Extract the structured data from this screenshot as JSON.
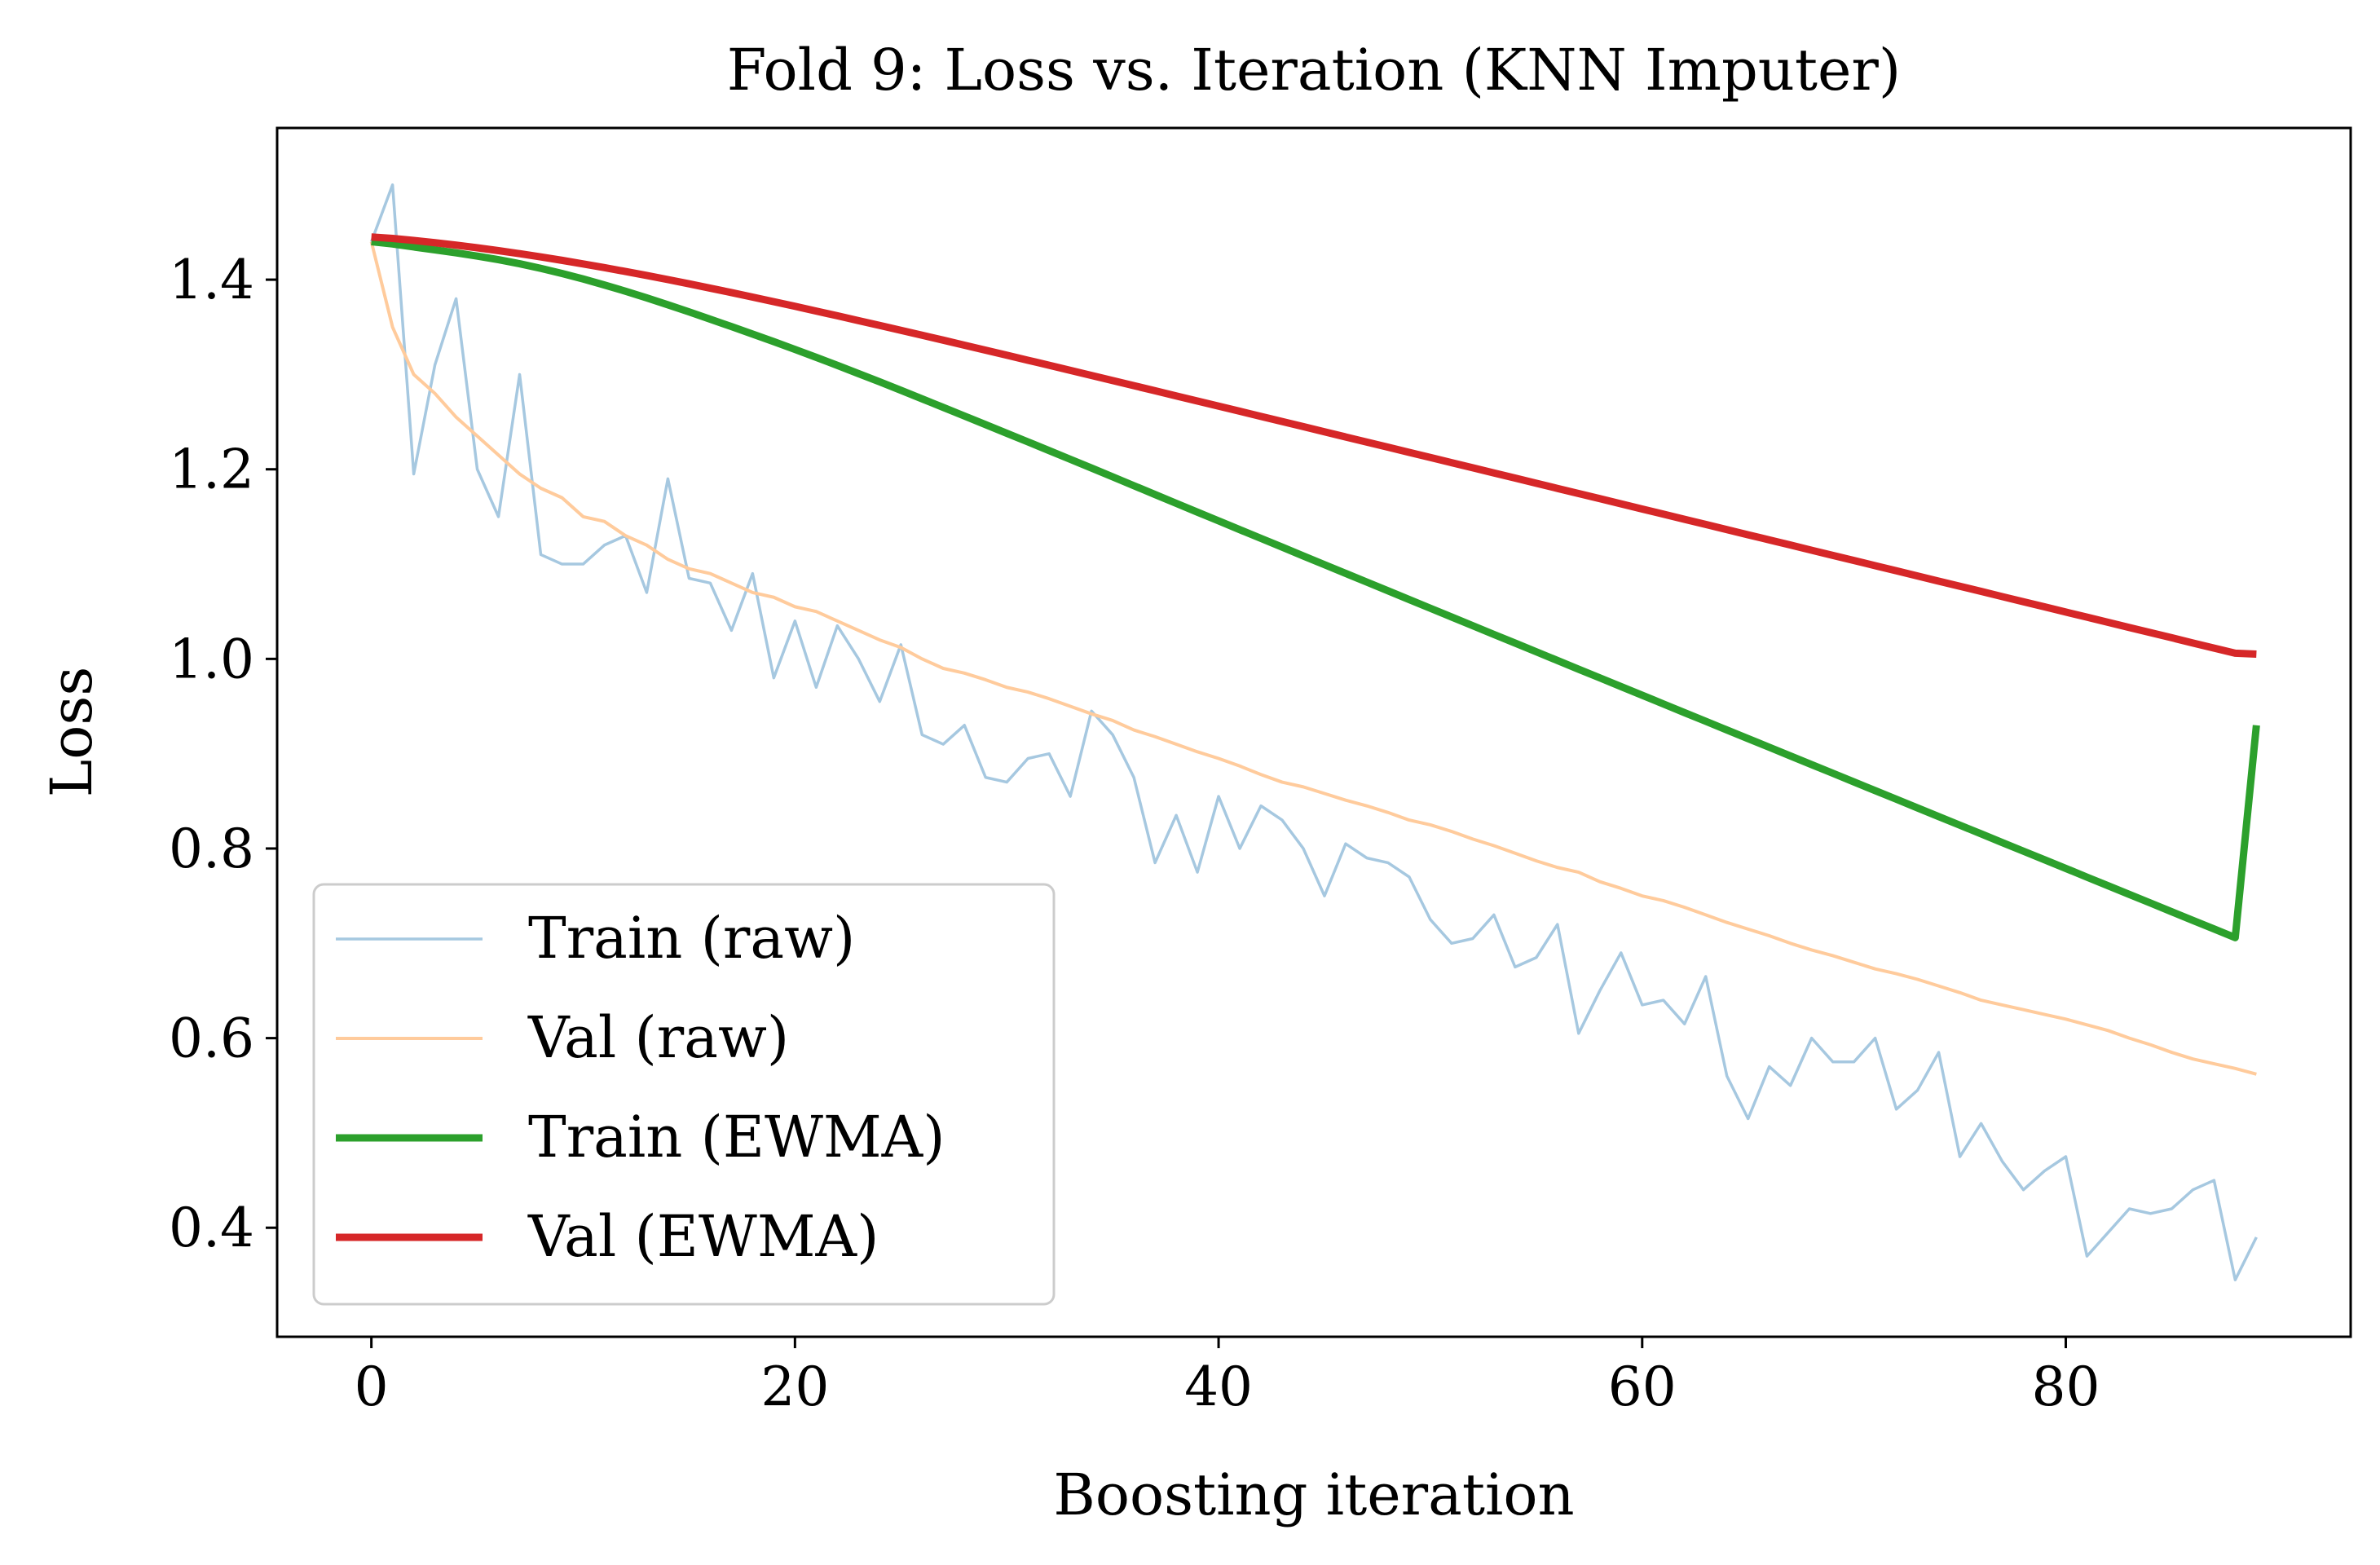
{
  "chart_data": {
    "type": "line",
    "title": "Fold 9: Loss vs. Iteration (KNN Imputer)",
    "xlabel": "Boosting iteration",
    "ylabel": "Loss",
    "xlim": [
      -4.45,
      93.45
    ],
    "ylim": [
      0.285,
      1.56
    ],
    "xticks": [
      0,
      20,
      40,
      60,
      80
    ],
    "xtick_labels": [
      "0",
      "20",
      "40",
      "60",
      "80"
    ],
    "yticks": [
      0.4,
      0.6,
      0.8,
      1.0,
      1.2,
      1.4
    ],
    "ytick_labels": [
      "0.4",
      "0.6",
      "0.8",
      "1.0",
      "1.2",
      "1.4"
    ],
    "grid": false,
    "legend_position": "lower-left",
    "series": [
      {
        "name": "Train (raw)",
        "color": "#a6c8e0",
        "values": [
          1.44,
          1.5,
          1.195,
          1.31,
          1.38,
          1.2,
          1.15,
          1.3,
          1.11,
          1.1,
          1.1,
          1.12,
          1.13,
          1.07,
          1.19,
          1.085,
          1.08,
          1.03,
          1.09,
          0.98,
          1.04,
          0.97,
          1.035,
          1.0,
          0.955,
          1.015,
          0.92,
          0.91,
          0.93,
          0.875,
          0.87,
          0.895,
          0.9,
          0.855,
          0.945,
          0.92,
          0.875,
          0.785,
          0.835,
          0.775,
          0.855,
          0.8,
          0.845,
          0.83,
          0.8,
          0.75,
          0.805,
          0.79,
          0.785,
          0.77,
          0.725,
          0.7,
          0.705,
          0.73,
          0.675,
          0.685,
          0.72,
          0.605,
          0.65,
          0.69,
          0.635,
          0.64,
          0.615,
          0.665,
          0.56,
          0.515,
          0.57,
          0.55,
          0.6,
          0.575,
          0.575,
          0.6,
          0.525,
          0.545,
          0.585,
          0.475,
          0.51,
          0.47,
          0.44,
          0.46,
          0.475,
          0.37,
          0.395,
          0.42,
          0.415,
          0.42,
          0.44,
          0.45,
          0.345,
          0.39
        ]
      },
      {
        "name": "Val (raw)",
        "color": "#ffcb9c",
        "values": [
          1.44,
          1.35,
          1.3,
          1.28,
          1.255,
          1.235,
          1.215,
          1.195,
          1.18,
          1.17,
          1.15,
          1.145,
          1.13,
          1.12,
          1.105,
          1.095,
          1.09,
          1.08,
          1.07,
          1.065,
          1.055,
          1.05,
          1.04,
          1.03,
          1.02,
          1.012,
          1.0,
          0.99,
          0.985,
          0.978,
          0.97,
          0.965,
          0.958,
          0.95,
          0.942,
          0.935,
          0.925,
          0.918,
          0.91,
          0.902,
          0.895,
          0.887,
          0.878,
          0.87,
          0.865,
          0.858,
          0.851,
          0.845,
          0.838,
          0.83,
          0.825,
          0.818,
          0.81,
          0.803,
          0.795,
          0.787,
          0.78,
          0.775,
          0.765,
          0.758,
          0.75,
          0.745,
          0.738,
          0.73,
          0.722,
          0.715,
          0.708,
          0.7,
          0.693,
          0.687,
          0.68,
          0.673,
          0.668,
          0.662,
          0.655,
          0.648,
          0.64,
          0.635,
          0.63,
          0.625,
          0.62,
          0.614,
          0.608,
          0.6,
          0.593,
          0.585,
          0.578,
          0.573,
          0.568,
          0.562
        ]
      },
      {
        "name": "Train (EWMA)",
        "color": "#2ca02c",
        "values": [
          1.44,
          1.4377,
          1.4345,
          1.4314,
          1.4283,
          1.4249,
          1.4211,
          1.4168,
          1.4119,
          1.4065,
          1.4007,
          1.3944,
          1.3878,
          1.3808,
          1.3735,
          1.366,
          1.3583,
          1.3505,
          1.3426,
          1.3346,
          1.3264,
          1.3181,
          1.3096,
          1.3009,
          1.2922,
          1.2833,
          1.2743,
          1.2653,
          1.2562,
          1.2471,
          1.238,
          1.2289,
          1.2197,
          1.2105,
          1.2013,
          1.192,
          1.1827,
          1.1734,
          1.1641,
          1.1548,
          1.1456,
          1.1363,
          1.1271,
          1.1179,
          1.1086,
          1.0994,
          1.0902,
          1.081,
          1.0718,
          1.0626,
          1.0534,
          1.0442,
          1.035,
          1.0258,
          1.0167,
          1.0075,
          0.9983,
          0.9891,
          0.98,
          0.9708,
          0.9617,
          0.9525,
          0.9433,
          0.9342,
          0.925,
          0.9159,
          0.9068,
          0.8976,
          0.8885,
          0.8794,
          0.8702,
          0.8611,
          0.852,
          0.8428,
          0.8337,
          0.8246,
          0.8155,
          0.8063,
          0.7972,
          0.7881,
          0.779,
          0.7698,
          0.7607,
          0.7516,
          0.7425,
          0.7333,
          0.7242,
          0.7151,
          0.706,
          0.93
        ]
      },
      {
        "name": "Val (EWMA)",
        "color": "#d62728",
        "values": [
          1.445,
          1.4435,
          1.4414,
          1.439,
          1.4364,
          1.4336,
          1.4306,
          1.4274,
          1.424,
          1.4204,
          1.4166,
          1.4127,
          1.4086,
          1.4044,
          1.4001,
          1.3956,
          1.391,
          1.3864,
          1.3816,
          1.3768,
          1.3719,
          1.3669,
          1.3619,
          1.3568,
          1.3517,
          1.3466,
          1.3414,
          1.3362,
          1.3309,
          1.3256,
          1.3203,
          1.315,
          1.3097,
          1.3043,
          1.299,
          1.2936,
          1.2882,
          1.2828,
          1.2774,
          1.272,
          1.2666,
          1.2612,
          1.2558,
          1.2504,
          1.245,
          1.2395,
          1.2341,
          1.2287,
          1.2233,
          1.2178,
          1.2124,
          1.207,
          1.2016,
          1.1961,
          1.1907,
          1.1853,
          1.1798,
          1.1744,
          1.169,
          1.1635,
          1.1581,
          1.1527,
          1.1472,
          1.1418,
          1.1364,
          1.1309,
          1.1255,
          1.1201,
          1.1146,
          1.1092,
          1.1038,
          1.0983,
          1.0929,
          1.0875,
          1.082,
          1.0766,
          1.0712,
          1.0657,
          1.0603,
          1.0549,
          1.0494,
          1.044,
          1.0386,
          1.0331,
          1.0277,
          1.0223,
          1.0168,
          1.0114,
          1.006,
          1.005
        ]
      }
    ]
  }
}
